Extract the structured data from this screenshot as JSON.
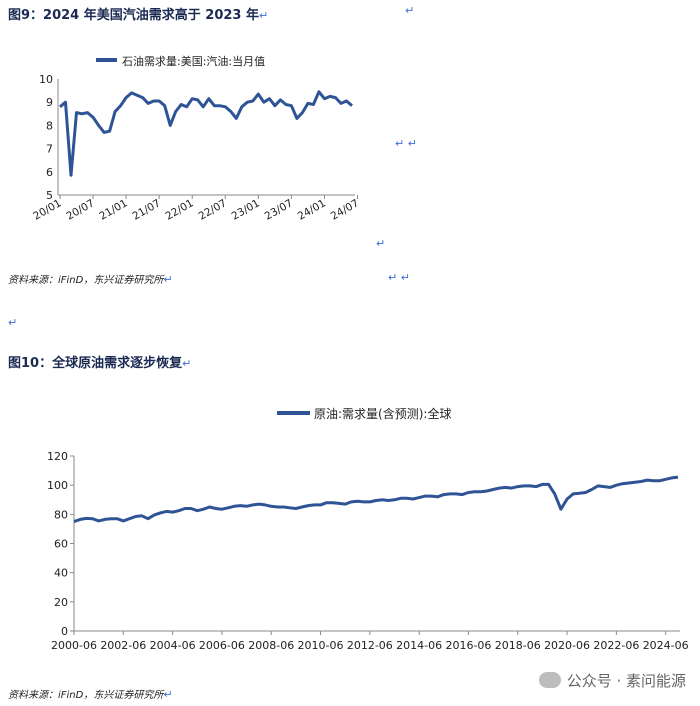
{
  "figure9": {
    "title": "图9：2024 年美国汽油需求高于 2023 年",
    "source": "资料来源：iFinD，东兴证券研究所"
  },
  "figure10": {
    "title": "图10：全球原油需求逐步恢复",
    "source": "资料来源：iFinD，东兴证券研究所"
  },
  "watermark": {
    "text": "公众号 · 素问能源"
  },
  "colors": {
    "series": "#2e5496",
    "axis": "#8a8a8a"
  },
  "chart_data": [
    {
      "type": "line",
      "legend": "石油需求量:美国:汽油:当月值",
      "ylim": [
        5,
        10
      ],
      "yticks": [
        5,
        6,
        7,
        8,
        9,
        10
      ],
      "xtick_labels": [
        "20/01",
        "20/07",
        "21/01",
        "21/07",
        "22/01",
        "22/07",
        "23/01",
        "23/07",
        "24/01",
        "24/07"
      ],
      "xtick_indices": [
        0,
        6,
        12,
        18,
        24,
        30,
        36,
        42,
        48,
        54
      ],
      "values": [
        8.8,
        9.0,
        5.85,
        8.55,
        8.5,
        8.55,
        8.35,
        8.0,
        7.7,
        7.75,
        8.6,
        8.85,
        9.2,
        9.4,
        9.3,
        9.2,
        8.95,
        9.05,
        9.05,
        8.85,
        8.0,
        8.6,
        8.9,
        8.8,
        9.15,
        9.1,
        8.8,
        9.15,
        8.85,
        8.85,
        8.8,
        8.6,
        8.3,
        8.8,
        9.0,
        9.05,
        9.35,
        9.0,
        9.15,
        8.85,
        9.1,
        8.9,
        8.85,
        8.3,
        8.55,
        8.95,
        8.9,
        9.45,
        9.15,
        9.25,
        9.2,
        8.95,
        9.05,
        8.85
      ]
    },
    {
      "type": "line",
      "legend": "原油:需求量(含预测):全球",
      "ylim": [
        0,
        120
      ],
      "yticks": [
        0,
        20,
        40,
        60,
        80,
        100,
        120
      ],
      "x_start_year": 2000.5,
      "x_end_year": 2025.0,
      "xtick_labels": [
        "2000-06",
        "2002-06",
        "2004-06",
        "2006-06",
        "2008-06",
        "2010-06",
        "2012-06",
        "2014-06",
        "2016-06",
        "2018-06",
        "2020-06",
        "2022-06",
        "2024-06"
      ],
      "xtick_years": [
        2000.5,
        2002.5,
        2004.5,
        2006.5,
        2008.5,
        2010.5,
        2012.5,
        2014.5,
        2016.5,
        2018.5,
        2020.5,
        2022.5,
        2024.5
      ],
      "points": [
        [
          2000.5,
          75
        ],
        [
          2000.75,
          76.5
        ],
        [
          2001.0,
          77.2
        ],
        [
          2001.25,
          77.0
        ],
        [
          2001.5,
          75.5
        ],
        [
          2001.75,
          76.5
        ],
        [
          2002.0,
          77.0
        ],
        [
          2002.25,
          77.0
        ],
        [
          2002.5,
          75.5
        ],
        [
          2002.75,
          77.0
        ],
        [
          2003.0,
          78.5
        ],
        [
          2003.25,
          79.0
        ],
        [
          2003.5,
          77.0
        ],
        [
          2003.75,
          79.5
        ],
        [
          2004.0,
          81.0
        ],
        [
          2004.25,
          82.0
        ],
        [
          2004.5,
          81.5
        ],
        [
          2004.75,
          82.5
        ],
        [
          2005.0,
          84.0
        ],
        [
          2005.25,
          84.0
        ],
        [
          2005.5,
          82.5
        ],
        [
          2005.75,
          83.5
        ],
        [
          2006.0,
          85.0
        ],
        [
          2006.25,
          84.0
        ],
        [
          2006.5,
          83.5
        ],
        [
          2006.75,
          84.5
        ],
        [
          2007.0,
          85.5
        ],
        [
          2007.25,
          86.0
        ],
        [
          2007.5,
          85.5
        ],
        [
          2007.75,
          86.5
        ],
        [
          2008.0,
          87.0
        ],
        [
          2008.25,
          86.5
        ],
        [
          2008.5,
          85.5
        ],
        [
          2008.75,
          85.0
        ],
        [
          2009.0,
          85.0
        ],
        [
          2009.25,
          84.5
        ],
        [
          2009.5,
          84.0
        ],
        [
          2009.75,
          85.0
        ],
        [
          2010.0,
          86.0
        ],
        [
          2010.25,
          86.5
        ],
        [
          2010.5,
          86.5
        ],
        [
          2010.75,
          88.0
        ],
        [
          2011.0,
          88.0
        ],
        [
          2011.25,
          87.5
        ],
        [
          2011.5,
          87.0
        ],
        [
          2011.75,
          88.5
        ],
        [
          2012.0,
          89.0
        ],
        [
          2012.25,
          88.5
        ],
        [
          2012.5,
          88.5
        ],
        [
          2012.75,
          89.5
        ],
        [
          2013.0,
          90.0
        ],
        [
          2013.25,
          89.5
        ],
        [
          2013.5,
          90.0
        ],
        [
          2013.75,
          91.0
        ],
        [
          2014.0,
          91.0
        ],
        [
          2014.25,
          90.5
        ],
        [
          2014.5,
          91.5
        ],
        [
          2014.75,
          92.5
        ],
        [
          2015.0,
          92.5
        ],
        [
          2015.25,
          92.0
        ],
        [
          2015.5,
          93.5
        ],
        [
          2015.75,
          94.0
        ],
        [
          2016.0,
          94.0
        ],
        [
          2016.25,
          93.5
        ],
        [
          2016.5,
          95.0
        ],
        [
          2016.75,
          95.5
        ],
        [
          2017.0,
          95.5
        ],
        [
          2017.25,
          96.0
        ],
        [
          2017.5,
          97.0
        ],
        [
          2017.75,
          98.0
        ],
        [
          2018.0,
          98.5
        ],
        [
          2018.25,
          98.0
        ],
        [
          2018.5,
          99.0
        ],
        [
          2018.75,
          99.5
        ],
        [
          2019.0,
          99.5
        ],
        [
          2019.25,
          99.0
        ],
        [
          2019.5,
          100.5
        ],
        [
          2019.75,
          100.5
        ],
        [
          2020.0,
          94.0
        ],
        [
          2020.25,
          83.5
        ],
        [
          2020.5,
          90.5
        ],
        [
          2020.75,
          94.0
        ],
        [
          2021.0,
          94.5
        ],
        [
          2021.25,
          95.0
        ],
        [
          2021.5,
          97.0
        ],
        [
          2021.75,
          99.5
        ],
        [
          2022.0,
          99.0
        ],
        [
          2022.25,
          98.5
        ],
        [
          2022.5,
          100.0
        ],
        [
          2022.75,
          101.0
        ],
        [
          2023.0,
          101.5
        ],
        [
          2023.25,
          102.0
        ],
        [
          2023.5,
          102.5
        ],
        [
          2023.75,
          103.5
        ],
        [
          2024.0,
          103.0
        ],
        [
          2024.25,
          103.0
        ],
        [
          2024.5,
          104.0
        ],
        [
          2024.75,
          105.0
        ],
        [
          2025.0,
          105.5
        ]
      ]
    }
  ]
}
